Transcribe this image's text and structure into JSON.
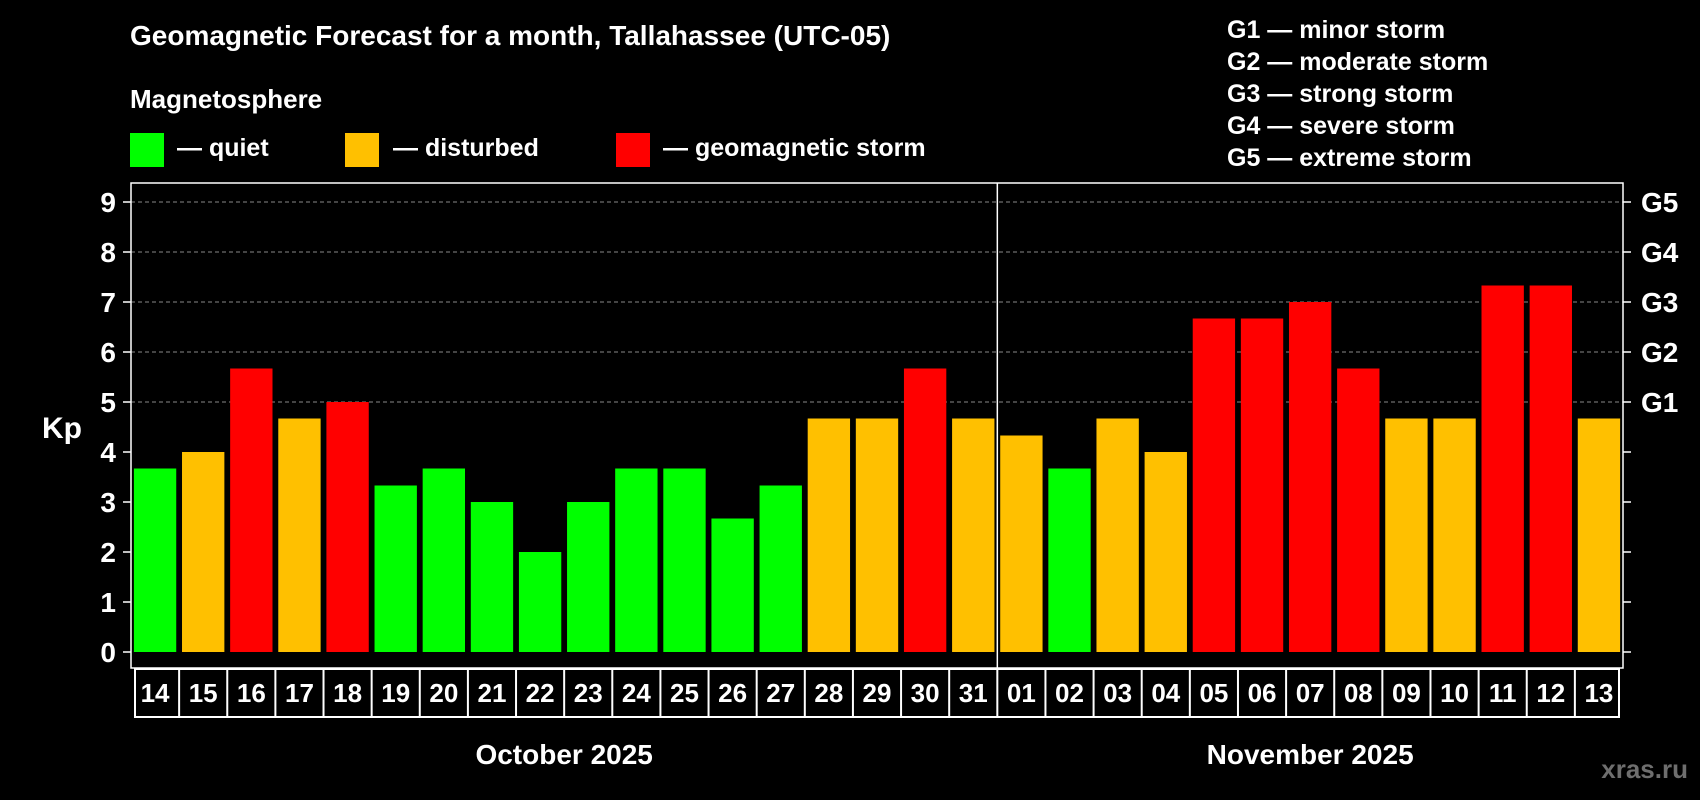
{
  "title": "Geomagnetic Forecast for a month, Tallahassee (UTC-05)",
  "magnetosphere_label": "Magnetosphere",
  "legend": [
    {
      "label": "— quiet",
      "color": "#00ff00"
    },
    {
      "label": "— disturbed",
      "color": "#ffc000"
    },
    {
      "label": "— geomagnetic storm",
      "color": "#ff0000"
    }
  ],
  "storm_scale": [
    "G1 — minor storm",
    "G2 — moderate storm",
    "G3 — strong storm",
    "G4 — severe storm",
    "G5 — extreme storm"
  ],
  "watermark": "xras.ru",
  "colors": {
    "quiet": "#00ff00",
    "disturbed": "#ffc000",
    "storm": "#ff0000"
  },
  "chart_data": {
    "type": "bar",
    "ylabel": "Kp",
    "ylim": [
      0,
      9
    ],
    "yticks": [
      0,
      1,
      2,
      3,
      4,
      5,
      6,
      7,
      8,
      9
    ],
    "right_ticks": [
      {
        "value": 5,
        "label": "G1"
      },
      {
        "value": 6,
        "label": "G2"
      },
      {
        "value": 7,
        "label": "G3"
      },
      {
        "value": 8,
        "label": "G4"
      },
      {
        "value": 9,
        "label": "G5"
      }
    ],
    "grid": true,
    "months": [
      {
        "label": "October 2025",
        "start_index": 0,
        "count": 18
      },
      {
        "label": "November 2025",
        "start_index": 18,
        "count": 13
      }
    ],
    "categories": [
      "14",
      "15",
      "16",
      "17",
      "18",
      "19",
      "20",
      "21",
      "22",
      "23",
      "24",
      "25",
      "26",
      "27",
      "28",
      "29",
      "30",
      "31",
      "01",
      "02",
      "03",
      "04",
      "05",
      "06",
      "07",
      "08",
      "09",
      "10",
      "11",
      "12",
      "13"
    ],
    "values": [
      3.67,
      4,
      5.67,
      4.67,
      5,
      3.33,
      3.67,
      3,
      2,
      3,
      3.67,
      3.67,
      2.67,
      3.33,
      4.67,
      4.67,
      5.67,
      4.67,
      4.33,
      3.67,
      4.67,
      4,
      6.67,
      6.67,
      7,
      5.67,
      4.67,
      4.67,
      7.33,
      7.33,
      4.67
    ],
    "levels": [
      "quiet",
      "disturbed",
      "storm",
      "disturbed",
      "storm",
      "quiet",
      "quiet",
      "quiet",
      "quiet",
      "quiet",
      "quiet",
      "quiet",
      "quiet",
      "quiet",
      "disturbed",
      "disturbed",
      "storm",
      "disturbed",
      "disturbed",
      "quiet",
      "disturbed",
      "disturbed",
      "storm",
      "storm",
      "storm",
      "storm",
      "disturbed",
      "disturbed",
      "storm",
      "storm",
      "disturbed"
    ]
  }
}
